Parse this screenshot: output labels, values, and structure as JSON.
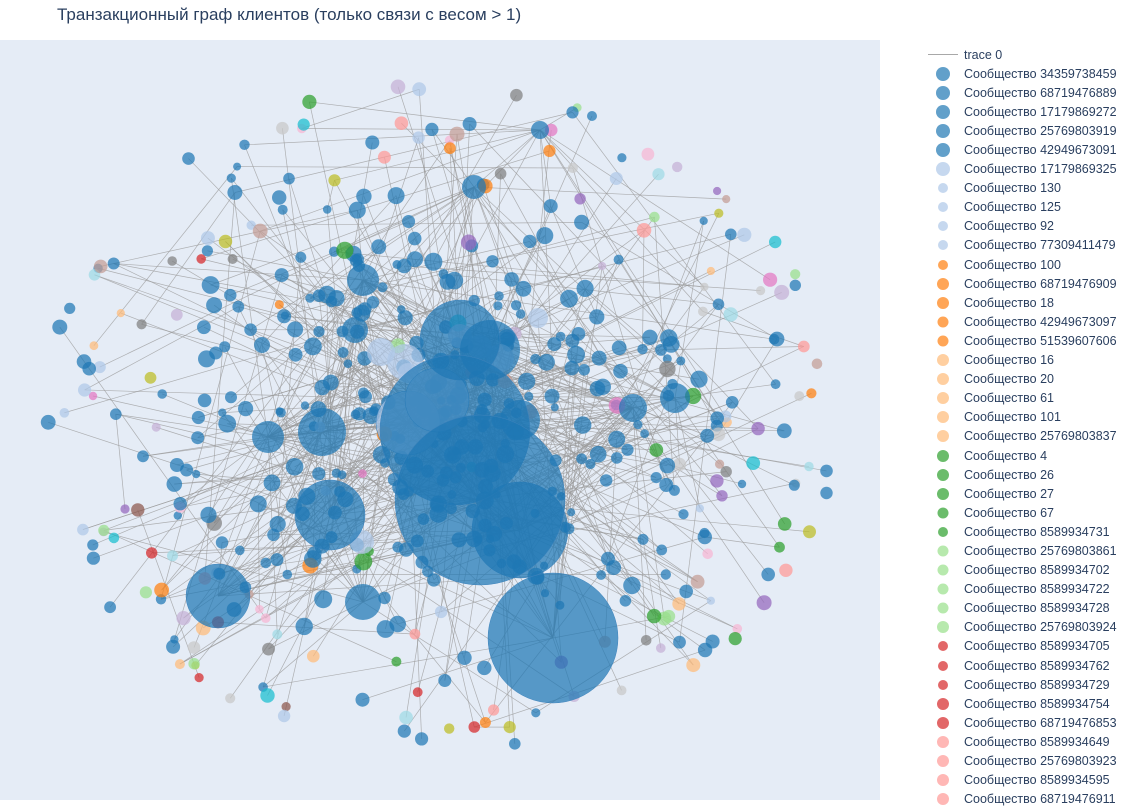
{
  "title": "Транзакционный граф клиентов (только связи с весом > 1)",
  "colors": {
    "plot_bg": "#e5ecf6",
    "edge": "#999999",
    "text": "#2a3f5f"
  },
  "chart_data": {
    "type": "scatter",
    "title": "Транзакционный граф клиентов (только связи с весом > 1)",
    "xlabel": "",
    "ylabel": "",
    "grid": false,
    "axes_visible": false,
    "legend_position": "right",
    "legend": [
      {
        "name": "trace 0",
        "kind": "line",
        "color": "#999999"
      },
      {
        "name": "Сообщество 34359738459",
        "color": "#1f77b4",
        "size": 14
      },
      {
        "name": "Сообщество 68719476889",
        "color": "#1f77b4",
        "size": 14
      },
      {
        "name": "Сообщество 17179869272",
        "color": "#1f77b4",
        "size": 14
      },
      {
        "name": "Сообщество 25769803919",
        "color": "#1f77b4",
        "size": 14
      },
      {
        "name": "Сообщество 42949673091",
        "color": "#1f77b4",
        "size": 14
      },
      {
        "name": "Сообщество 17179869325",
        "color": "#aec7e8",
        "size": 14
      },
      {
        "name": "Сообщество 130",
        "color": "#aec7e8",
        "size": 10
      },
      {
        "name": "Сообщество 125",
        "color": "#aec7e8",
        "size": 10
      },
      {
        "name": "Сообщество 92",
        "color": "#aec7e8",
        "size": 10
      },
      {
        "name": "Сообщество 77309411479",
        "color": "#aec7e8",
        "size": 10
      },
      {
        "name": "Сообщество 100",
        "color": "#ff7f0e",
        "size": 10
      },
      {
        "name": "Сообщество 68719476909",
        "color": "#ff7f0e",
        "size": 12
      },
      {
        "name": "Сообщество 18",
        "color": "#ff7f0e",
        "size": 12
      },
      {
        "name": "Сообщество 42949673097",
        "color": "#ff7f0e",
        "size": 11
      },
      {
        "name": "Сообщество 51539607606",
        "color": "#ff7f0e",
        "size": 11
      },
      {
        "name": "Сообщество 16",
        "color": "#ffbb78",
        "size": 12
      },
      {
        "name": "Сообщество 20",
        "color": "#ffbb78",
        "size": 12
      },
      {
        "name": "Сообщество 61",
        "color": "#ffbb78",
        "size": 12
      },
      {
        "name": "Сообщество 101",
        "color": "#ffbb78",
        "size": 12
      },
      {
        "name": "Сообщество 25769803837",
        "color": "#ffbb78",
        "size": 12
      },
      {
        "name": "Сообщество 4",
        "color": "#2ca02c",
        "size": 12
      },
      {
        "name": "Сообщество 26",
        "color": "#2ca02c",
        "size": 12
      },
      {
        "name": "Сообщество 27",
        "color": "#2ca02c",
        "size": 12
      },
      {
        "name": "Сообщество 67",
        "color": "#2ca02c",
        "size": 11
      },
      {
        "name": "Сообщество 8589934731",
        "color": "#2ca02c",
        "size": 10
      },
      {
        "name": "Сообщество 25769803861",
        "color": "#98df8a",
        "size": 11
      },
      {
        "name": "Сообщество 8589934702",
        "color": "#98df8a",
        "size": 11
      },
      {
        "name": "Сообщество 8589934722",
        "color": "#98df8a",
        "size": 11
      },
      {
        "name": "Сообщество 8589934728",
        "color": "#98df8a",
        "size": 11
      },
      {
        "name": "Сообщество 25769803924",
        "color": "#98df8a",
        "size": 12
      },
      {
        "name": "Сообщество 8589934705",
        "color": "#d62728",
        "size": 10
      },
      {
        "name": "Сообщество 8589934762",
        "color": "#d62728",
        "size": 10
      },
      {
        "name": "Сообщество 8589934729",
        "color": "#d62728",
        "size": 10
      },
      {
        "name": "Сообщество 8589934754",
        "color": "#d62728",
        "size": 12
      },
      {
        "name": "Сообщество 68719476853",
        "color": "#d62728",
        "size": 12
      },
      {
        "name": "Сообщество 8589934649",
        "color": "#ff9896",
        "size": 12
      },
      {
        "name": "Сообщество 25769803923",
        "color": "#ff9896",
        "size": 12
      },
      {
        "name": "Сообщество 8589934595",
        "color": "#ff9896",
        "size": 12
      },
      {
        "name": "Сообщество 68719476911",
        "color": "#ff9896",
        "size": 12
      }
    ]
  }
}
